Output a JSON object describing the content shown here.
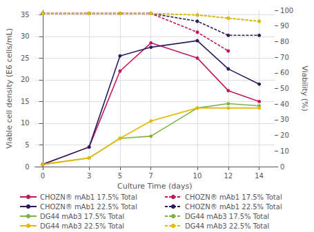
{
  "chart_data": {
    "type": "line",
    "xlabel": "Culture Time (days)",
    "ylabel": "Viable cell density (E6 cells/mL)",
    "y2label": "Viability (%)",
    "x": [
      0,
      3,
      5,
      7,
      10,
      12,
      14
    ],
    "xlim": [
      -0.5,
      15
    ],
    "xticks": [
      0,
      3,
      5,
      7,
      10,
      12,
      14
    ],
    "ylim": [
      0,
      36
    ],
    "yticks": [
      0,
      5,
      10,
      15,
      20,
      25,
      30,
      35
    ],
    "y2lim": [
      0,
      100
    ],
    "y2ticks": [
      0,
      10,
      20,
      30,
      40,
      50,
      60,
      70,
      80,
      90,
      100
    ],
    "grid": true,
    "legend": "bottom",
    "series": [
      {
        "name": "CHOZN® mAb1 17.5% Total",
        "color": "#c2185b",
        "values": [
          0.5,
          4.5,
          22,
          28.5,
          25,
          17.5,
          15
        ],
        "line_style": "solid",
        "marker": "circle"
      },
      {
        "name": "CHOZN® mAb1 22.5% Total",
        "color": "#2d1b5e",
        "values": [
          0.5,
          4.5,
          25.5,
          27.5,
          29,
          22.5,
          19
        ],
        "line_style": "solid",
        "marker": "circle"
      },
      {
        "name": "DG44 mAb3 17.5% Total",
        "color": "#7cb342",
        "values": [
          0.5,
          2,
          6.5,
          7.0,
          13.5,
          14.5,
          14
        ],
        "line_style": "solid",
        "marker": "circle"
      },
      {
        "name": "DG44 mAb3 22.5% Total",
        "color": "#e6b800",
        "values": [
          0.5,
          2,
          6.5,
          10.5,
          13.5,
          13.5,
          13.5
        ],
        "line_style": "solid",
        "marker": "circle"
      },
      {
        "name": "CHOZN® mAb1 17.5% Total",
        "color": "#c2185b",
        "values": [
          98,
          98,
          98,
          98,
          86,
          74,
          null
        ],
        "line_style": "dashed",
        "marker": "circle",
        "axis": "y2"
      },
      {
        "name": "CHOZN® mAb1 22.5% Total",
        "color": "#2d1b5e",
        "values": [
          98,
          98,
          98,
          98,
          93,
          84,
          84
        ],
        "line_style": "dashed",
        "marker": "circle",
        "axis": "y2"
      },
      {
        "name": "DG44 mAb3 17.5% Total",
        "color": "#7cb342",
        "values": [
          98,
          98,
          98,
          98,
          97,
          95,
          93
        ],
        "line_style": "dashed",
        "marker": "circle",
        "axis": "y2"
      },
      {
        "name": "DG44 mAb3 22.5% Total",
        "color": "#e6b800",
        "values": [
          98,
          98,
          98,
          98,
          97,
          95,
          93
        ],
        "line_style": "dashed",
        "marker": "circle",
        "axis": "y2"
      }
    ]
  }
}
